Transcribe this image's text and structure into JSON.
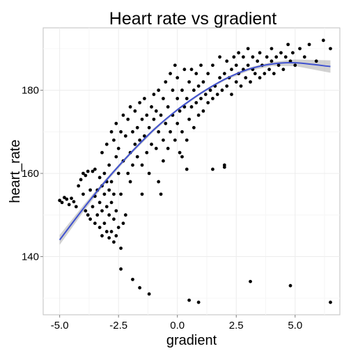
{
  "chart_data": {
    "type": "scatter",
    "title": "Heart rate vs gradient",
    "xlabel": "gradient",
    "ylabel": "heart_rate",
    "xlim": [
      -5.7,
      6.9
    ],
    "ylim": [
      126,
      195
    ],
    "x_ticks": [
      -5.0,
      -2.5,
      0.0,
      2.5,
      5.0
    ],
    "x_tick_labels": [
      "-5.0",
      "-2.5",
      "0.0",
      "2.5",
      "5.0"
    ],
    "y_ticks": [
      140,
      160,
      180
    ],
    "y_tick_labels": [
      "140",
      "160",
      "180"
    ],
    "grid": true,
    "legend": "none",
    "colors": {
      "points": "#000000",
      "fit_line": "#3f51d0",
      "ribbon": "#999999",
      "panel_border": "#bfbfbf",
      "grid_major": "#ececec",
      "grid_minor": "#f6f6f6"
    },
    "fit_curve": [
      {
        "x": -5.0,
        "y": 144.0
      },
      {
        "x": -4.0,
        "y": 151.5
      },
      {
        "x": -3.0,
        "y": 158.5
      },
      {
        "x": -2.0,
        "y": 164.8
      },
      {
        "x": -1.0,
        "y": 170.5
      },
      {
        "x": 0.0,
        "y": 175.3
      },
      {
        "x": 1.0,
        "y": 179.3
      },
      {
        "x": 2.0,
        "y": 182.6
      },
      {
        "x": 3.0,
        "y": 185.0
      },
      {
        "x": 4.0,
        "y": 186.3
      },
      {
        "x": 5.0,
        "y": 186.6
      },
      {
        "x": 6.5,
        "y": 185.7
      }
    ],
    "ribbon_halfwidth": [
      1.2,
      0.8,
      0.5,
      0.4,
      0.4,
      0.3,
      0.3,
      0.3,
      0.4,
      0.5,
      0.8,
      1.5
    ],
    "points": [
      [
        -5.0,
        153.5
      ],
      [
        -4.9,
        153.0
      ],
      [
        -4.8,
        154.2
      ],
      [
        -4.7,
        153.8
      ],
      [
        -4.6,
        152.5
      ],
      [
        -4.5,
        154.0
      ],
      [
        -4.4,
        153.2
      ],
      [
        -4.3,
        152.0
      ],
      [
        -4.2,
        157.0
      ],
      [
        -4.1,
        158.5
      ],
      [
        -4.0,
        160.0
      ],
      [
        -4.0,
        155.0
      ],
      [
        -3.9,
        151.0
      ],
      [
        -3.9,
        159.5
      ],
      [
        -3.8,
        150.0
      ],
      [
        -3.8,
        160.5
      ],
      [
        -3.7,
        149.0
      ],
      [
        -3.7,
        156.0
      ],
      [
        -3.6,
        152.0
      ],
      [
        -3.6,
        160.5
      ],
      [
        -3.5,
        148.0
      ],
      [
        -3.5,
        154.5
      ],
      [
        -3.5,
        161.0
      ],
      [
        -3.4,
        150.0
      ],
      [
        -3.4,
        156.0
      ],
      [
        -3.3,
        147.0
      ],
      [
        -3.3,
        153.0
      ],
      [
        -3.3,
        159.0
      ],
      [
        -3.2,
        145.0
      ],
      [
        -3.2,
        151.0
      ],
      [
        -3.2,
        157.0
      ],
      [
        -3.2,
        165.0
      ],
      [
        -3.1,
        148.0
      ],
      [
        -3.1,
        155.0
      ],
      [
        -3.1,
        160.0
      ],
      [
        -3.0,
        146.0
      ],
      [
        -3.0,
        152.0
      ],
      [
        -3.0,
        158.0
      ],
      [
        -3.0,
        167.0
      ],
      [
        -2.9,
        144.5
      ],
      [
        -2.9,
        150.0
      ],
      [
        -2.9,
        156.0
      ],
      [
        -2.9,
        162.0
      ],
      [
        -2.8,
        146.0
      ],
      [
        -2.8,
        153.0
      ],
      [
        -2.8,
        158.0
      ],
      [
        -2.8,
        170.0
      ],
      [
        -2.7,
        143.5
      ],
      [
        -2.7,
        149.0
      ],
      [
        -2.7,
        155.0
      ],
      [
        -2.7,
        168.0
      ],
      [
        -2.6,
        145.0
      ],
      [
        -2.6,
        151.0
      ],
      [
        -2.6,
        164.0
      ],
      [
        -2.6,
        172.0
      ],
      [
        -2.5,
        147.0
      ],
      [
        -2.5,
        160.0
      ],
      [
        -2.5,
        166.0
      ],
      [
        -2.4,
        142.0
      ],
      [
        -2.4,
        155.0
      ],
      [
        -2.4,
        170.0
      ],
      [
        -2.3,
        148.0
      ],
      [
        -2.3,
        163.0
      ],
      [
        -2.3,
        174.0
      ],
      [
        -2.2,
        150.0
      ],
      [
        -2.2,
        169.0
      ],
      [
        -2.1,
        160.0
      ],
      [
        -2.1,
        173.0
      ],
      [
        -2.0,
        165.0
      ],
      [
        -2.0,
        176.0
      ],
      [
        -2.0,
        158.0
      ],
      [
        -1.9,
        170.0
      ],
      [
        -1.9,
        162.0
      ],
      [
        -1.8,
        167.0
      ],
      [
        -1.8,
        175.0
      ],
      [
        -1.7,
        164.0
      ],
      [
        -1.7,
        171.0
      ],
      [
        -1.6,
        168.0
      ],
      [
        -1.6,
        177.0
      ],
      [
        -1.5,
        162.0
      ],
      [
        -1.5,
        173.0
      ],
      [
        -1.4,
        169.0
      ],
      [
        -1.4,
        178.0
      ],
      [
        -1.3,
        165.0
      ],
      [
        -1.3,
        174.0
      ],
      [
        -1.2,
        171.0
      ],
      [
        -1.2,
        160.0
      ],
      [
        -1.1,
        176.0
      ],
      [
        -1.1,
        167.0
      ],
      [
        -1.0,
        173.0
      ],
      [
        -1.0,
        179.0
      ],
      [
        -0.9,
        166.0
      ],
      [
        -0.9,
        175.0
      ],
      [
        -0.8,
        170.0
      ],
      [
        -0.8,
        180.0
      ],
      [
        -0.7,
        155.0
      ],
      [
        -0.7,
        174.0
      ],
      [
        -0.6,
        168.0
      ],
      [
        -0.6,
        178.0
      ],
      [
        -0.5,
        172.0
      ],
      [
        -0.5,
        182.0
      ],
      [
        -0.4,
        166.0
      ],
      [
        -0.4,
        176.0
      ],
      [
        -0.3,
        170.0
      ],
      [
        -0.3,
        184.0
      ],
      [
        -0.2,
        174.0
      ],
      [
        -0.2,
        180.0
      ],
      [
        -0.1,
        168.0
      ],
      [
        -0.1,
        186.0
      ],
      [
        0.0,
        172.0
      ],
      [
        0.0,
        178.0
      ],
      [
        0.0,
        183.0
      ],
      [
        0.1,
        165.0
      ],
      [
        0.1,
        175.0
      ],
      [
        0.2,
        170.0
      ],
      [
        0.2,
        180.0
      ],
      [
        0.3,
        176.0
      ],
      [
        0.3,
        185.0
      ],
      [
        0.4,
        168.0
      ],
      [
        0.4,
        178.0
      ],
      [
        0.5,
        173.0
      ],
      [
        0.5,
        182.0
      ],
      [
        0.6,
        176.0
      ],
      [
        0.6,
        185.0
      ],
      [
        0.7,
        171.0
      ],
      [
        0.7,
        180.0
      ],
      [
        0.8,
        177.0
      ],
      [
        0.8,
        184.0
      ],
      [
        0.9,
        174.0
      ],
      [
        0.9,
        181.0
      ],
      [
        1.0,
        178.0
      ],
      [
        1.0,
        186.0
      ],
      [
        1.1,
        175.0
      ],
      [
        1.1,
        182.0
      ],
      [
        1.2,
        179.0
      ],
      [
        1.3,
        177.0
      ],
      [
        1.3,
        184.0
      ],
      [
        1.4,
        180.0
      ],
      [
        1.5,
        178.0
      ],
      [
        1.5,
        186.0
      ],
      [
        1.6,
        181.0
      ],
      [
        1.7,
        179.0
      ],
      [
        1.8,
        183.0
      ],
      [
        1.8,
        188.0
      ],
      [
        1.9,
        180.0
      ],
      [
        2.0,
        184.0
      ],
      [
        2.0,
        162.0
      ],
      [
        2.1,
        181.0
      ],
      [
        2.1,
        187.0
      ],
      [
        2.2,
        183.0
      ],
      [
        2.3,
        185.0
      ],
      [
        2.3,
        179.0
      ],
      [
        2.4,
        188.0
      ],
      [
        2.5,
        182.0
      ],
      [
        2.5,
        186.0
      ],
      [
        2.6,
        184.0
      ],
      [
        2.6,
        189.0
      ],
      [
        2.7,
        181.0
      ],
      [
        2.8,
        185.0
      ],
      [
        2.8,
        188.0
      ],
      [
        2.9,
        183.0
      ],
      [
        3.0,
        186.0
      ],
      [
        3.0,
        190.0
      ],
      [
        3.1,
        182.0
      ],
      [
        3.2,
        185.0
      ],
      [
        3.2,
        188.0
      ],
      [
        3.3,
        184.0
      ],
      [
        3.4,
        187.0
      ],
      [
        3.5,
        183.0
      ],
      [
        3.5,
        189.0
      ],
      [
        3.6,
        186.0
      ],
      [
        3.7,
        184.0
      ],
      [
        3.8,
        188.0
      ],
      [
        3.9,
        185.0
      ],
      [
        4.0,
        187.0
      ],
      [
        4.0,
        190.0
      ],
      [
        4.1,
        184.0
      ],
      [
        4.2,
        188.0
      ],
      [
        4.3,
        186.0
      ],
      [
        4.4,
        189.0
      ],
      [
        4.5,
        185.0
      ],
      [
        4.6,
        188.0
      ],
      [
        4.7,
        191.0
      ],
      [
        4.8,
        187.0
      ],
      [
        4.9,
        189.0
      ],
      [
        5.0,
        186.0
      ],
      [
        5.2,
        190.0
      ],
      [
        5.4,
        188.0
      ],
      [
        5.6,
        191.0
      ],
      [
        5.9,
        187.0
      ],
      [
        6.2,
        192.0
      ],
      [
        6.5,
        190.0
      ],
      [
        -2.4,
        137.0
      ],
      [
        -1.9,
        134.5
      ],
      [
        -1.6,
        132.5
      ],
      [
        -1.2,
        131.0
      ],
      [
        0.5,
        129.5
      ],
      [
        0.9,
        129.0
      ],
      [
        3.1,
        134.0
      ],
      [
        4.8,
        133.0
      ],
      [
        6.5,
        129.0
      ],
      [
        -1.5,
        155.0
      ],
      [
        -0.8,
        158.0
      ],
      [
        0.4,
        161.0
      ],
      [
        1.5,
        161.0
      ],
      [
        2.0,
        161.5
      ],
      [
        -0.6,
        163.0
      ],
      [
        0.2,
        164.0
      ]
    ]
  }
}
